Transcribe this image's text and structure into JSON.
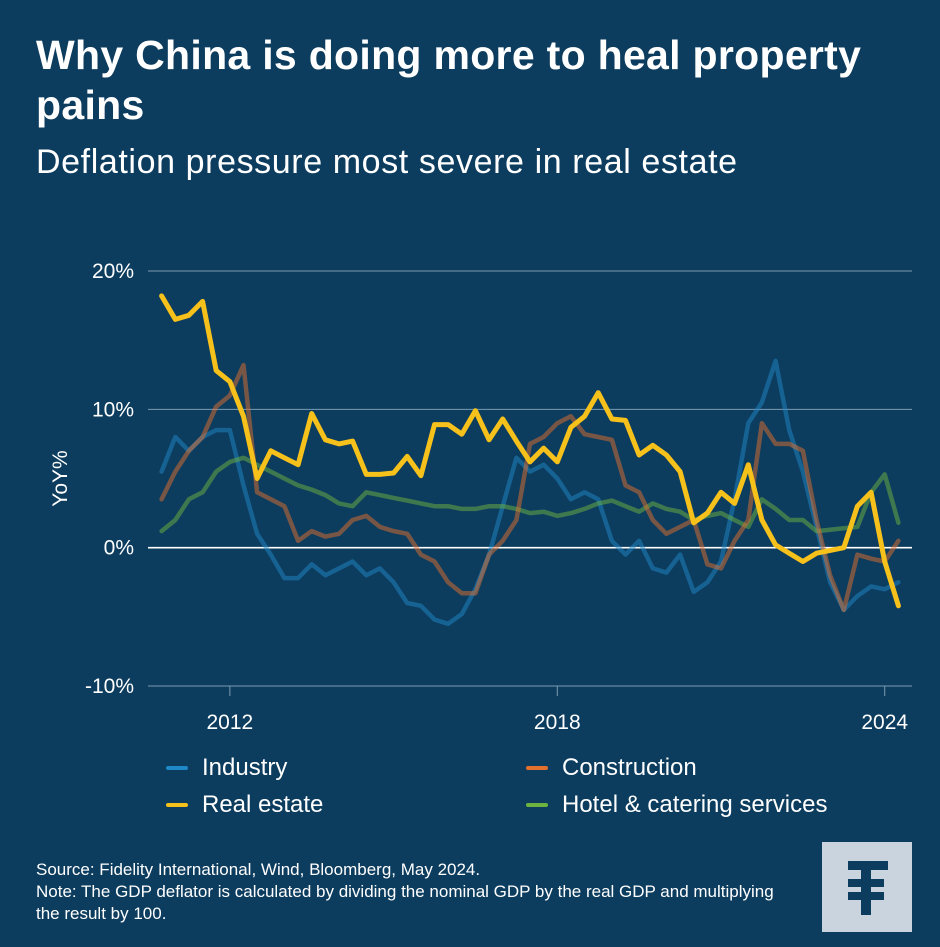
{
  "header": {
    "title": "Why China is doing more to heal property pains",
    "subtitle": "Deflation pressure most severe in real estate"
  },
  "chart_data": {
    "type": "line",
    "ylabel": "YoY%",
    "ylim": [
      -10,
      20
    ],
    "xlim": [
      2010.5,
      2024.5
    ],
    "yticks": [
      20,
      10,
      0,
      -10
    ],
    "ytick_labels": [
      "20%",
      "10%",
      "0%",
      "-10%"
    ],
    "xticks": [
      2012,
      2018,
      2024
    ],
    "xtick_labels": [
      "2012",
      "2018",
      "2024"
    ],
    "grid": true,
    "legend_position": "bottom",
    "series": [
      {
        "name": "Industry",
        "color": "#1f88c7",
        "x": [
          2010.75,
          2011.0,
          2011.25,
          2011.5,
          2011.75,
          2012.0,
          2012.25,
          2012.5,
          2012.75,
          2013.0,
          2013.25,
          2013.5,
          2013.75,
          2014.0,
          2014.25,
          2014.5,
          2014.75,
          2015.0,
          2015.25,
          2015.5,
          2015.75,
          2016.0,
          2016.25,
          2016.5,
          2016.75,
          2017.0,
          2017.25,
          2017.5,
          2017.75,
          2018.0,
          2018.25,
          2018.5,
          2018.75,
          2019.0,
          2019.25,
          2019.5,
          2019.75,
          2020.0,
          2020.25,
          2020.5,
          2020.75,
          2021.0,
          2021.25,
          2021.5,
          2021.75,
          2022.0,
          2022.25,
          2022.5,
          2022.75,
          2023.0,
          2023.25,
          2023.5,
          2023.75,
          2024.0,
          2024.25
        ],
        "values": [
          5.5,
          8.0,
          7.0,
          8.0,
          8.5,
          8.5,
          4.5,
          1.0,
          -0.5,
          -2.2,
          -2.2,
          -1.2,
          -2.0,
          -1.5,
          -1.0,
          -2.0,
          -1.5,
          -2.5,
          -4.0,
          -4.2,
          -5.2,
          -5.5,
          -4.8,
          -3.0,
          -0.5,
          3.0,
          6.5,
          5.5,
          6.0,
          5.0,
          3.5,
          4.0,
          3.5,
          0.5,
          -0.5,
          0.5,
          -1.5,
          -1.8,
          -0.5,
          -3.2,
          -2.5,
          -1.0,
          3.5,
          9.0,
          10.5,
          13.5,
          8.5,
          5.5,
          1.5,
          -2.5,
          -4.5,
          -3.5,
          -2.8,
          -3.0,
          -2.5
        ]
      },
      {
        "name": "Construction",
        "color": "#e3702d",
        "x": [
          2010.75,
          2011.0,
          2011.25,
          2011.5,
          2011.75,
          2012.0,
          2012.25,
          2012.5,
          2012.75,
          2013.0,
          2013.25,
          2013.5,
          2013.75,
          2014.0,
          2014.25,
          2014.5,
          2014.75,
          2015.0,
          2015.25,
          2015.5,
          2015.75,
          2016.0,
          2016.25,
          2016.5,
          2016.75,
          2017.0,
          2017.25,
          2017.5,
          2017.75,
          2018.0,
          2018.25,
          2018.5,
          2018.75,
          2019.0,
          2019.25,
          2019.5,
          2019.75,
          2020.0,
          2020.25,
          2020.5,
          2020.75,
          2021.0,
          2021.25,
          2021.5,
          2021.75,
          2022.0,
          2022.25,
          2022.5,
          2022.75,
          2023.0,
          2023.25,
          2023.5,
          2023.75,
          2024.0,
          2024.25
        ],
        "values": [
          3.5,
          5.5,
          7.0,
          8.0,
          10.2,
          11.0,
          13.2,
          4.0,
          3.5,
          3.0,
          0.5,
          1.2,
          0.8,
          1.0,
          2.0,
          2.3,
          1.5,
          1.2,
          1.0,
          -0.5,
          -1.0,
          -2.5,
          -3.3,
          -3.3,
          -0.5,
          0.5,
          2.0,
          7.5,
          8.0,
          9.0,
          9.5,
          8.2,
          8.0,
          7.8,
          4.5,
          4.0,
          2.0,
          1.0,
          1.5,
          2.0,
          -1.2,
          -1.5,
          0.5,
          2.0,
          9.0,
          7.5,
          7.5,
          7.0,
          2.0,
          -2.0,
          -4.5,
          -0.5,
          -0.8,
          -1.0,
          0.5
        ]
      },
      {
        "name": "Real estate",
        "color": "#f7c11b",
        "x": [
          2010.75,
          2011.0,
          2011.25,
          2011.5,
          2011.75,
          2012.0,
          2012.25,
          2012.5,
          2012.75,
          2013.0,
          2013.25,
          2013.5,
          2013.75,
          2014.0,
          2014.25,
          2014.5,
          2014.75,
          2015.0,
          2015.25,
          2015.5,
          2015.75,
          2016.0,
          2016.25,
          2016.5,
          2016.75,
          2017.0,
          2017.25,
          2017.5,
          2017.75,
          2018.0,
          2018.25,
          2018.5,
          2018.75,
          2019.0,
          2019.25,
          2019.5,
          2019.75,
          2020.0,
          2020.25,
          2020.5,
          2020.75,
          2021.0,
          2021.25,
          2021.5,
          2021.75,
          2022.0,
          2022.25,
          2022.5,
          2022.75,
          2023.0,
          2023.25,
          2023.5,
          2023.75,
          2024.0,
          2024.25
        ],
        "values": [
          18.2,
          16.5,
          16.8,
          17.8,
          12.8,
          12.0,
          9.5,
          5.0,
          7.0,
          6.5,
          6.0,
          9.7,
          7.8,
          7.5,
          7.7,
          5.3,
          5.3,
          5.4,
          6.6,
          5.2,
          8.9,
          8.9,
          8.2,
          9.9,
          7.8,
          9.3,
          7.7,
          6.2,
          7.2,
          6.2,
          8.7,
          9.5,
          11.2,
          9.3,
          9.2,
          6.7,
          7.4,
          6.7,
          5.5,
          1.8,
          2.5,
          4.0,
          3.2,
          6.0,
          2.0,
          0.2,
          -0.4,
          -1.0,
          -0.4,
          -0.2,
          0.0,
          3.0,
          4.0,
          -1.0,
          -4.2
        ]
      },
      {
        "name": "Hotel & catering services",
        "color": "#6db33f",
        "x": [
          2010.75,
          2011.0,
          2011.25,
          2011.5,
          2011.75,
          2012.0,
          2012.25,
          2012.5,
          2012.75,
          2013.0,
          2013.25,
          2013.5,
          2013.75,
          2014.0,
          2014.25,
          2014.5,
          2014.75,
          2015.0,
          2015.25,
          2015.5,
          2015.75,
          2016.0,
          2016.25,
          2016.5,
          2016.75,
          2017.0,
          2017.25,
          2017.5,
          2017.75,
          2018.0,
          2018.25,
          2018.5,
          2018.75,
          2019.0,
          2019.25,
          2019.5,
          2019.75,
          2020.0,
          2020.25,
          2020.5,
          2020.75,
          2021.0,
          2021.25,
          2021.5,
          2021.75,
          2022.0,
          2022.25,
          2022.5,
          2022.75,
          2023.0,
          2023.25,
          2023.5,
          2023.75,
          2024.0,
          2024.25
        ],
        "values": [
          1.2,
          2.0,
          3.5,
          4.0,
          5.5,
          6.2,
          6.5,
          6.0,
          5.5,
          5.0,
          4.5,
          4.2,
          3.8,
          3.2,
          3.0,
          4.0,
          3.8,
          3.6,
          3.4,
          3.2,
          3.0,
          3.0,
          2.8,
          2.8,
          3.0,
          3.0,
          2.8,
          2.5,
          2.6,
          2.3,
          2.5,
          2.8,
          3.2,
          3.4,
          3.0,
          2.6,
          3.2,
          2.8,
          2.6,
          2.0,
          2.3,
          2.5,
          2.0,
          1.5,
          3.5,
          2.8,
          2.0,
          2.0,
          1.2,
          1.3,
          1.4,
          1.5,
          4.0,
          5.3,
          1.8
        ]
      }
    ]
  },
  "footnote": {
    "source": "Source: Fidelity International, Wind, Bloomberg, May 2024.",
    "note": "Note: The GDP deflator is calculated by dividing the nominal GDP by the real GDP and multiplying the result by 100."
  },
  "logo": {
    "glyph": "F",
    "icon": "fidelity-logo-icon"
  }
}
